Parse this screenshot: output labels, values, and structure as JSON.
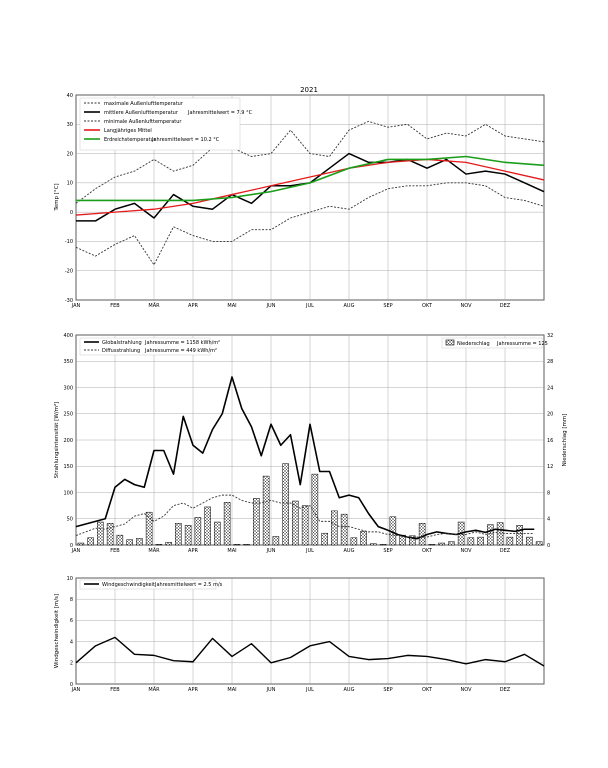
{
  "page_title": "2021",
  "month_labels": [
    "JAN",
    "FEB",
    "MÄR",
    "APR",
    "MAI",
    "JUN",
    "JUL",
    "AUG",
    "SEP",
    "OKT",
    "NOV",
    "DEZ"
  ],
  "colors": {
    "mean_temp": "#000000",
    "long_term": "#e41a1c",
    "soil": "#1a9e1a",
    "extremes": "#333333",
    "grid": "#999999"
  },
  "chart_data": [
    {
      "type": "line",
      "ylabel": "Temp [°C]",
      "ylim": [
        -30,
        40
      ],
      "yticks": [
        -30,
        -20,
        -10,
        0,
        10,
        20,
        30,
        40
      ],
      "x_period": 24,
      "grid": true,
      "legend_position": "top-left",
      "legend": {
        "max_label": "maximale Außenlufttemperatur",
        "mean_label": "mittlere Außenlufttemperatur",
        "mean_note": "Jahresmittelwert = 7.9 °C",
        "min_label": "minimale Außenlufttemperatur",
        "long_label": "Langjähriges Mittel",
        "soil_label": "Erdreichstemperatur",
        "soil_note": "Jahresmittelwert = 10.2 °C"
      },
      "series": [
        {
          "key": "max",
          "name": "maximale Außenlufttemperatur",
          "style": "dashed",
          "x": [
            0,
            1,
            2,
            3,
            4,
            5,
            6,
            7,
            8,
            9,
            10,
            11,
            12,
            13,
            14,
            15,
            16,
            17,
            18,
            19,
            20,
            21,
            22,
            23,
            24
          ],
          "values": [
            3,
            8,
            12,
            14,
            18,
            14,
            16,
            22,
            22,
            19,
            20,
            28,
            20,
            19,
            28,
            31,
            29,
            30,
            25,
            27,
            26,
            30,
            26,
            25,
            24
          ]
        },
        {
          "key": "mean",
          "name": "mittlere Außenlufttemperatur",
          "style": "solid",
          "x": [
            0,
            1,
            2,
            3,
            4,
            5,
            6,
            7,
            8,
            9,
            10,
            11,
            12,
            13,
            14,
            15,
            16,
            17,
            18,
            19,
            20,
            21,
            22,
            23,
            24
          ],
          "values": [
            -3,
            -3,
            1,
            3,
            -2,
            6,
            2,
            1,
            6,
            3,
            9,
            9,
            10,
            15,
            20,
            17,
            17,
            18,
            15,
            18,
            13,
            14,
            13,
            10,
            7
          ]
        },
        {
          "key": "min",
          "name": "minimale Außenlufttemperatur",
          "style": "dashed",
          "x": [
            0,
            1,
            2,
            3,
            4,
            5,
            6,
            7,
            8,
            9,
            10,
            11,
            12,
            13,
            14,
            15,
            16,
            17,
            18,
            19,
            20,
            21,
            22,
            23,
            24
          ],
          "values": [
            -12,
            -15,
            -11,
            -8,
            -18,
            -5,
            -8,
            -10,
            -10,
            -6,
            -6,
            -2,
            0,
            2,
            1,
            5,
            8,
            9,
            9,
            10,
            10,
            9,
            5,
            4,
            2
          ]
        },
        {
          "key": "long_term",
          "name": "Langjähriges Mittel",
          "style": "solid",
          "x": [
            0,
            2,
            4,
            6,
            8,
            10,
            12,
            14,
            16,
            18,
            20,
            22,
            24
          ],
          "values": [
            -1,
            0,
            1,
            3,
            6,
            9,
            12,
            15,
            17,
            18,
            17,
            14,
            11
          ]
        },
        {
          "key": "soil",
          "name": "Erdreichstemperatur",
          "style": "solid",
          "x": [
            0,
            2,
            4,
            6,
            8,
            10,
            12,
            14,
            16,
            18,
            20,
            22,
            24
          ],
          "values": [
            4,
            4,
            4,
            4,
            5,
            7,
            10,
            15,
            18,
            18,
            19,
            17,
            16
          ]
        }
      ]
    },
    {
      "type": "bar+line",
      "ylabel_left": "Strahlungsintensität [W/m²]",
      "ylabel_right": "Niederschlag [mm]",
      "ylim_left": [
        0,
        400
      ],
      "yticks_left": [
        0,
        50,
        100,
        150,
        200,
        250,
        300,
        350,
        400
      ],
      "ylim_right": [
        0,
        32
      ],
      "yticks_right": [
        0,
        4,
        8,
        12,
        16,
        20,
        24,
        28,
        32
      ],
      "x_period": 24,
      "grid": true,
      "legend": {
        "global_label": "Globalstrahlung",
        "global_note": "Jahressumme = 1158 kWh/m²",
        "diffuse_label": "Diffusstrahlung",
        "diffuse_note": "Jahressumme = 449 kWh/m²",
        "precip_label": "Niederschlag",
        "precip_note": "Jahressumme = 125"
      },
      "series": [
        {
          "key": "global",
          "name": "Globalstrahlung",
          "style": "solid",
          "x": [
            0,
            1,
            2,
            3,
            4,
            5,
            6,
            7,
            8,
            9,
            10,
            11,
            12,
            13,
            14,
            15,
            16,
            17,
            18,
            19,
            20,
            21,
            22,
            23,
            24
          ],
          "values": [
            35,
            40,
            45,
            50,
            110,
            125,
            115,
            110,
            180,
            180,
            135,
            245,
            190,
            175,
            220,
            250,
            320,
            260,
            225,
            170,
            230,
            190,
            210,
            115,
            230
          ]
        },
        {
          "key": "diffuse",
          "name": "Diffusstrahlung",
          "style": "dashed",
          "x": [
            0,
            1,
            2,
            3,
            4,
            5,
            6,
            7,
            8,
            9,
            10,
            11,
            12,
            13,
            14,
            15,
            16,
            17,
            18,
            19,
            20,
            21,
            22,
            23,
            24
          ],
          "values": [
            18,
            25,
            32,
            30,
            35,
            40,
            55,
            60,
            45,
            55,
            75,
            80,
            70,
            80,
            90,
            95,
            95,
            85,
            80,
            80,
            85,
            80,
            80,
            70,
            75
          ]
        },
        {
          "key": "precip",
          "name": "Niederschlag",
          "style": "bars",
          "x": [
            0,
            1,
            2,
            3,
            4,
            5,
            6,
            7,
            8,
            9,
            10,
            11,
            12,
            13,
            14,
            15,
            16,
            17,
            18,
            19,
            20,
            21,
            22,
            23,
            24,
            25,
            26,
            27,
            28,
            29,
            30,
            31,
            32,
            33,
            34,
            35,
            36,
            37,
            38,
            39,
            40,
            41,
            42,
            43,
            44,
            45,
            46,
            47
          ],
          "values": [
            0.3,
            1.1,
            3.5,
            3.3,
            1.5,
            0.8,
            1.0,
            5.0,
            0.1,
            0.4,
            3.3,
            3.0,
            4.2,
            5.8,
            3.5,
            6.5,
            0.1,
            0.1,
            7.1,
            10.5,
            1.3,
            12.4,
            6.7,
            6.0,
            10.8,
            1.8,
            5.2,
            4.7,
            1.1,
            2.1,
            0.2,
            0.1,
            4.3,
            1.5,
            1.4,
            3.3,
            0.1,
            0.3,
            0.5,
            3.5,
            1.1,
            1.2,
            3.1,
            3.4,
            1.2,
            3.0,
            1.2,
            0.5
          ]
        }
      ],
      "continuation": {
        "global_x": [
          24,
          25,
          26,
          27,
          28,
          29,
          30,
          31,
          32,
          33,
          34,
          35,
          36,
          37,
          38,
          39,
          40,
          41,
          42,
          43,
          44,
          45,
          46,
          47
        ],
        "global_values": [
          230,
          140,
          140,
          90,
          95,
          90,
          60,
          35,
          28,
          20,
          15,
          12,
          20,
          25,
          22,
          20,
          25,
          28,
          24,
          30,
          28,
          26,
          30,
          30
        ],
        "diffuse_x": [
          24,
          25,
          26,
          27,
          28,
          29,
          30,
          31,
          32,
          33,
          34,
          35,
          36,
          37,
          38,
          39,
          40,
          41,
          42,
          43,
          44,
          45,
          46,
          47
        ],
        "diffuse_values": [
          75,
          45,
          45,
          35,
          35,
          30,
          25,
          25,
          20,
          18,
          15,
          15,
          15,
          20,
          22,
          20,
          20,
          25,
          20,
          24,
          22,
          22,
          22,
          22
        ]
      }
    },
    {
      "type": "line",
      "ylabel": "Windgeschwindigkeit [m/s]",
      "ylim": [
        0,
        10
      ],
      "yticks": [
        0,
        2,
        4,
        6,
        8,
        10
      ],
      "x_period": 24,
      "grid": true,
      "legend": {
        "wind_label": "Windgeschwindigkeit",
        "wind_note": "Jahresmittelwert = 2.5 m/s"
      },
      "series": [
        {
          "key": "wind",
          "name": "Windgeschwindigkeit",
          "style": "solid",
          "x": [
            0,
            1,
            2,
            3,
            4,
            5,
            6,
            7,
            8,
            9,
            10,
            11,
            12,
            13,
            14,
            15,
            16,
            17,
            18,
            19,
            20,
            21,
            22,
            23,
            24
          ],
          "values": [
            2.0,
            3.6,
            4.4,
            2.8,
            2.7,
            2.2,
            2.1,
            4.3,
            2.6,
            3.8,
            2.0,
            2.5,
            3.6,
            4.0,
            2.6,
            2.3,
            2.4,
            2.7,
            2.6,
            2.3,
            1.9,
            2.3,
            2.1,
            2.8,
            1.7
          ]
        }
      ]
    }
  ]
}
